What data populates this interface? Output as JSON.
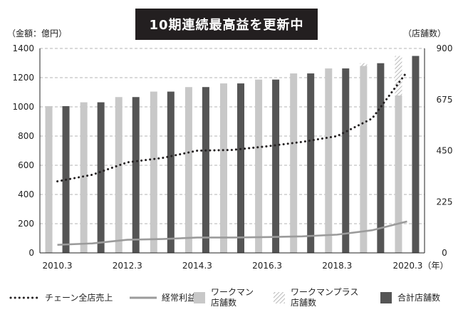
{
  "chart_data": {
    "type": "bar+line",
    "title": "10期連続最高益を更新中",
    "y_left_label": "（金額：億円）",
    "y_right_label": "（店舗数）",
    "y_left_lim": [
      0,
      1400
    ],
    "y_right_lim": [
      0,
      900
    ],
    "y_left_ticks": [
      "0",
      "200",
      "400",
      "600",
      "800",
      "1000",
      "1200",
      "1400"
    ],
    "y_right_ticks": [
      "0",
      "225",
      "450",
      "675",
      "900"
    ],
    "x_tick_labels": [
      "2010.3",
      "2012.3",
      "2014.3",
      "2016.3",
      "2018.3",
      "2020.3（年）"
    ],
    "categories": [
      "2010.3",
      "2011.3",
      "2012.3",
      "2013.3",
      "2014.3",
      "2015.3",
      "2016.3",
      "2017.3",
      "2018.3",
      "2019.3",
      "2020.3"
    ],
    "series": [
      {
        "name": "チェーン全店売上",
        "axis": "left",
        "style": "dotted-line",
        "values": [
          490,
          535,
          620,
          650,
          700,
          705,
          730,
          760,
          800,
          920,
          1240
        ]
      },
      {
        "name": "経常利益",
        "axis": "left",
        "style": "line",
        "values": [
          55,
          65,
          90,
          95,
          105,
          105,
          108,
          113,
          125,
          155,
          215
        ]
      },
      {
        "name": "ワークマン店舗数",
        "axis": "right",
        "style": "bar-light",
        "values": [
          646,
          663,
          686,
          710,
          730,
          746,
          763,
          790,
          812,
          823,
          693
        ]
      },
      {
        "name": "ワークマンプラス店舗数",
        "axis": "right",
        "style": "bar-hatched",
        "values": [
          0,
          0,
          0,
          0,
          0,
          0,
          0,
          0,
          0,
          12,
          174
        ]
      },
      {
        "name": "合計店舗数",
        "axis": "right",
        "style": "bar-dark",
        "values": [
          646,
          663,
          686,
          710,
          730,
          746,
          763,
          790,
          812,
          835,
          867
        ]
      }
    ]
  },
  "legend": {
    "sales": "チェーン全店売上",
    "profit": "経常利益",
    "workman_line1": "ワークマン",
    "workman_line2": "店舗数",
    "plus_line1": "ワークマンプラス",
    "plus_line2": "店舗数",
    "total": "合計店舗数"
  },
  "colors": {
    "sales": "#231f20",
    "profit": "#9b9b9b",
    "bar_light": "#c8c8c8",
    "bar_dark": "#555555",
    "title_bg": "#231f20"
  }
}
